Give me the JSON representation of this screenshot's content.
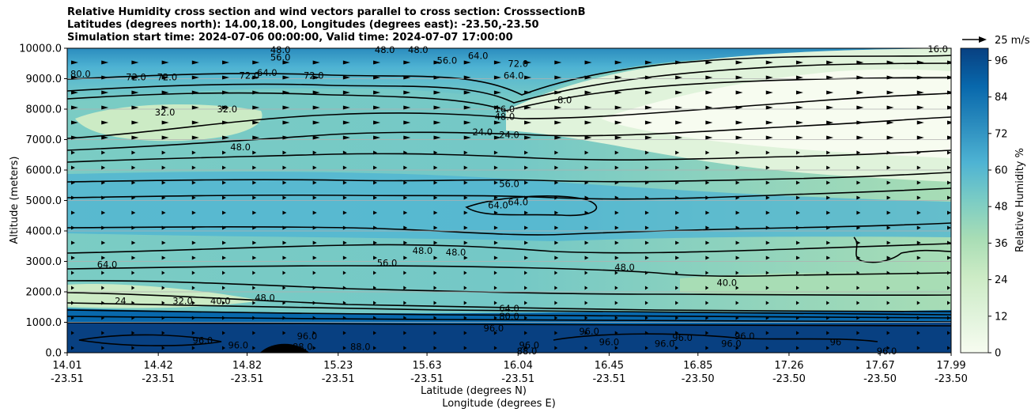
{
  "chart_data": {
    "type": "contourf-with-vectors",
    "title_lines": [
      "Relative Humidity cross section and wind vectors parallel to cross section: CrosssectionB",
      "Latitudes (degrees north): 14.00,18.00, Longitudes (degrees east): -23.50,-23.50",
      "Simulation start time: 2024-07-06 00:00:00, Valid time: 2024-07-07 17:00:00"
    ],
    "xlabel_lat": "Latitude (degrees N)",
    "xlabel_lon": "Longitude (degrees E)",
    "ylabel": "Altitude (meters)",
    "ylim": [
      0,
      10000
    ],
    "yticks": [
      "0.0",
      "1000.0",
      "2000.0",
      "3000.0",
      "4000.0",
      "5000.0",
      "6000.0",
      "7000.0",
      "8000.0",
      "9000.0",
      "10000.0"
    ],
    "xticks": [
      {
        "lat": "14.01",
        "lon": "-23.51"
      },
      {
        "lat": "14.42",
        "lon": "-23.51"
      },
      {
        "lat": "14.82",
        "lon": "-23.51"
      },
      {
        "lat": "15.23",
        "lon": "-23.51"
      },
      {
        "lat": "15.63",
        "lon": "-23.51"
      },
      {
        "lat": "16.04",
        "lon": "-23.51"
      },
      {
        "lat": "16.45",
        "lon": "-23.51"
      },
      {
        "lat": "16.85",
        "lon": "-23.50"
      },
      {
        "lat": "17.26",
        "lon": "-23.50"
      },
      {
        "lat": "17.67",
        "lon": "-23.50"
      },
      {
        "lat": "17.99",
        "lon": "-23.50"
      }
    ],
    "colorbar": {
      "label": "Relative Humidity %",
      "ticks": [
        "0",
        "12",
        "24",
        "36",
        "48",
        "60",
        "72",
        "84",
        "96"
      ],
      "range": [
        0,
        100
      ],
      "levels": 25,
      "colors": [
        "#f7fcf0",
        "#e0f3db",
        "#ccebc5",
        "#a8ddb5",
        "#7bccc4",
        "#4eb3d3",
        "#2b8cbe",
        "#0868ac",
        "#084081"
      ]
    },
    "quiver_key": "25 m/s",
    "contour_labels": [
      {
        "text": "80.0",
        "x": 14.07,
        "y": 9150
      },
      {
        "text": "72.0",
        "x": 14.32,
        "y": 9050
      },
      {
        "text": "72.0",
        "x": 14.46,
        "y": 9050
      },
      {
        "text": "32.0",
        "x": 14.45,
        "y": 7900
      },
      {
        "text": "32.0",
        "x": 14.73,
        "y": 8000
      },
      {
        "text": "48.0",
        "x": 14.79,
        "y": 6750
      },
      {
        "text": "72.0",
        "x": 14.83,
        "y": 9100
      },
      {
        "text": "48.0",
        "x": 14.97,
        "y": 9950
      },
      {
        "text": "56.0",
        "x": 14.97,
        "y": 9700
      },
      {
        "text": "64.0",
        "x": 14.91,
        "y": 9200
      },
      {
        "text": "72.0",
        "x": 15.12,
        "y": 9100
      },
      {
        "text": "48.0",
        "x": 15.44,
        "y": 9950
      },
      {
        "text": "48.0",
        "x": 15.59,
        "y": 9950
      },
      {
        "text": "56.0",
        "x": 15.72,
        "y": 9600
      },
      {
        "text": "64.0",
        "x": 15.86,
        "y": 9750
      },
      {
        "text": "72.0",
        "x": 16.04,
        "y": 9500
      },
      {
        "text": "64.0",
        "x": 16.02,
        "y": 9100
      },
      {
        "text": "8.0",
        "x": 16.25,
        "y": 8300
      },
      {
        "text": "16.0",
        "x": 15.98,
        "y": 8000
      },
      {
        "text": "48.0",
        "x": 15.98,
        "y": 7750
      },
      {
        "text": "24.0",
        "x": 15.88,
        "y": 7250
      },
      {
        "text": "24.0",
        "x": 16.0,
        "y": 7150
      },
      {
        "text": "56.0",
        "x": 16.0,
        "y": 5550
      },
      {
        "text": "64.0",
        "x": 15.95,
        "y": 4850
      },
      {
        "text": "64.0",
        "x": 16.04,
        "y": 4950
      },
      {
        "text": "48.0",
        "x": 15.61,
        "y": 3350
      },
      {
        "text": "48.0",
        "x": 15.76,
        "y": 3300
      },
      {
        "text": "56.0",
        "x": 15.45,
        "y": 2950
      },
      {
        "text": "48.0",
        "x": 16.52,
        "y": 2800
      },
      {
        "text": "40.0",
        "x": 16.98,
        "y": 2300
      },
      {
        "text": "64.0",
        "x": 14.19,
        "y": 2900
      },
      {
        "text": "24",
        "x": 14.25,
        "y": 1700
      },
      {
        "text": "32.0",
        "x": 14.53,
        "y": 1700
      },
      {
        "text": "40.0",
        "x": 14.7,
        "y": 1700
      },
      {
        "text": "48.0",
        "x": 14.9,
        "y": 1800
      },
      {
        "text": "64.0",
        "x": 16.0,
        "y": 1450
      },
      {
        "text": "80.0",
        "x": 16.0,
        "y": 1200
      },
      {
        "text": "96.0",
        "x": 15.93,
        "y": 800
      },
      {
        "text": "96.0",
        "x": 14.62,
        "y": 400
      },
      {
        "text": "96.0",
        "x": 14.78,
        "y": 250
      },
      {
        "text": "96.0",
        "x": 15.09,
        "y": 550
      },
      {
        "text": "88.0",
        "x": 15.07,
        "y": 200
      },
      {
        "text": "88.0",
        "x": 15.33,
        "y": 200
      },
      {
        "text": "96.0",
        "x": 16.09,
        "y": 250
      },
      {
        "text": "88.0",
        "x": 16.08,
        "y": 50
      },
      {
        "text": "96.0",
        "x": 16.36,
        "y": 700
      },
      {
        "text": "96.0",
        "x": 16.45,
        "y": 350
      },
      {
        "text": "96.0",
        "x": 16.7,
        "y": 300
      },
      {
        "text": "96.0",
        "x": 16.78,
        "y": 500
      },
      {
        "text": "96.0",
        "x": 17.0,
        "y": 300
      },
      {
        "text": "96.0",
        "x": 17.06,
        "y": 550
      },
      {
        "text": "96",
        "x": 17.47,
        "y": 350
      },
      {
        "text": "96.0",
        "x": 17.7,
        "y": 50
      },
      {
        "text": "16.0",
        "x": 17.93,
        "y": 9980
      }
    ]
  }
}
